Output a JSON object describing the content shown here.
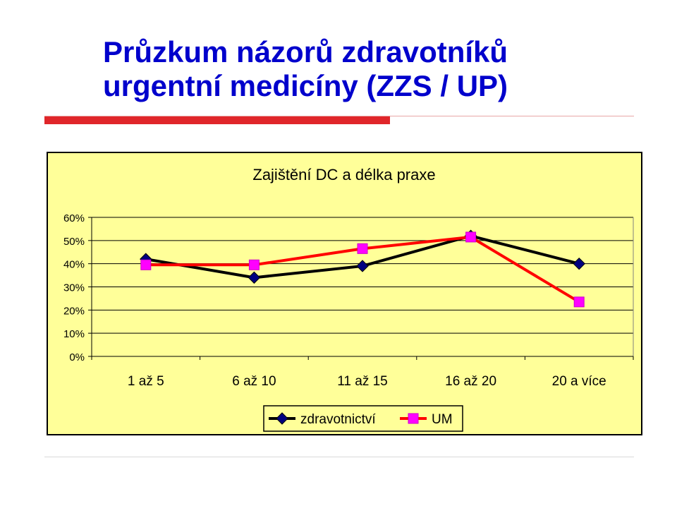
{
  "slide": {
    "title_line1": "Průzkum názorů zdravotníků",
    "title_line2": "urgentní medicíny (ZZS / UP)"
  },
  "colors": {
    "title": "#0000cc",
    "accent_bar": "#e0262a",
    "chart_bg": "#ffff99",
    "series_zdravotnictvi": "#000000",
    "series_zdravotnictvi_marker": "#000080",
    "series_um": "#ff0000",
    "series_um_marker": "#ff00ff"
  },
  "chart_data": {
    "type": "line",
    "title": "Zajištění DC a délka praxe",
    "categories": [
      "1 až 5",
      "6 až 10",
      "11 až 15",
      "16 až 20",
      "20 a více"
    ],
    "series": [
      {
        "name": "zdravotnictví",
        "values": [
          42,
          34,
          39,
          52,
          40
        ],
        "marker": "diamond"
      },
      {
        "name": "UM",
        "values": [
          39.5,
          39.5,
          46.5,
          51.5,
          23.5
        ],
        "marker": "square"
      }
    ],
    "ylim": [
      0,
      60
    ],
    "yticks": [
      0,
      10,
      20,
      30,
      40,
      50,
      60
    ],
    "ytick_labels": [
      "0%",
      "10%",
      "20%",
      "30%",
      "40%",
      "50%",
      "60%"
    ],
    "grid": true,
    "legend_position": "bottom"
  }
}
